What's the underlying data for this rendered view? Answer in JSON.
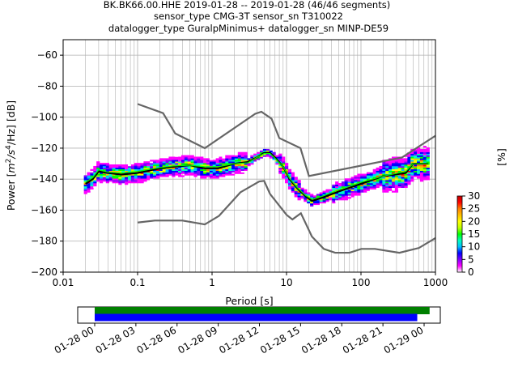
{
  "title": {
    "line1": "BK.BK66.00.HHE   2019-01-28 -- 2019-01-28  (46/46 segments)",
    "line2": "sensor_type CMG-3T sensor_sn T310022",
    "line3": "datalogger_type GuralpMinimus+ datalogger_sn MINP-DE59"
  },
  "chart_data": [
    {
      "type": "heatmap",
      "subtype": "probabilistic-power-spectral-density",
      "xlabel": "Period [s]",
      "ylabel_prefix": "Power [",
      "ylabel_unit": "m",
      "ylabel_sup1": "2",
      "ylabel_mid": "/s",
      "ylabel_sup2": "4",
      "ylabel_suffix": "/Hz] [dB]",
      "xscale": "log",
      "xlim": [
        0.01,
        1000
      ],
      "ylim": [
        -200,
        -50
      ],
      "xticks": [
        {
          "value": 0.01,
          "label": "0.01"
        },
        {
          "value": 0.1,
          "label": "0.1"
        },
        {
          "value": 1,
          "label": "1"
        },
        {
          "value": 10,
          "label": "10"
        },
        {
          "value": 100,
          "label": "100"
        },
        {
          "value": 1000,
          "label": "1000"
        }
      ],
      "yticks": [
        {
          "value": -60,
          "label": "−60"
        },
        {
          "value": -80,
          "label": "−80"
        },
        {
          "value": -100,
          "label": "−100"
        },
        {
          "value": -120,
          "label": "−120"
        },
        {
          "value": -140,
          "label": "−140"
        },
        {
          "value": -160,
          "label": "−160"
        },
        {
          "value": -180,
          "label": "−180"
        },
        {
          "value": -200,
          "label": "−200"
        }
      ],
      "grid": true,
      "noise_model_high": [
        [
          0.1,
          -91.5
        ],
        [
          0.22,
          -97.4
        ],
        [
          0.32,
          -110.5
        ],
        [
          0.8,
          -120
        ],
        [
          3.8,
          -97.8
        ],
        [
          4.6,
          -96.5
        ],
        [
          6.3,
          -101
        ],
        [
          8,
          -113.5
        ],
        [
          15.4,
          -120
        ],
        [
          20,
          -138
        ],
        [
          354.8,
          -126
        ],
        [
          1000,
          -112
        ]
      ],
      "noise_model_low": [
        [
          0.1,
          -168
        ],
        [
          0.17,
          -166.7
        ],
        [
          0.4,
          -166.7
        ],
        [
          0.8,
          -169.2
        ],
        [
          1.24,
          -163.7
        ],
        [
          2.4,
          -148.5
        ],
        [
          4.3,
          -141.5
        ],
        [
          5,
          -141.1
        ],
        [
          6,
          -149.5
        ],
        [
          10,
          -163
        ],
        [
          12,
          -166
        ],
        [
          15.6,
          -162
        ],
        [
          21.9,
          -177
        ],
        [
          31.6,
          -185
        ],
        [
          45,
          -187.5
        ],
        [
          70,
          -187.5
        ],
        [
          101,
          -185
        ],
        [
          154,
          -185
        ],
        [
          328,
          -187.5
        ],
        [
          600,
          -184.4
        ],
        [
          1000,
          -178
        ]
      ],
      "mode_line": [
        [
          0.02,
          -143
        ],
        [
          0.025,
          -140
        ],
        [
          0.03,
          -135
        ],
        [
          0.04,
          -136
        ],
        [
          0.06,
          -137
        ],
        [
          0.1,
          -136
        ],
        [
          0.2,
          -133
        ],
        [
          0.3,
          -132
        ],
        [
          0.5,
          -131
        ],
        [
          0.8,
          -133
        ],
        [
          1.2,
          -133
        ],
        [
          2,
          -130
        ],
        [
          3,
          -129
        ],
        [
          4,
          -126
        ],
        [
          5,
          -123
        ],
        [
          6,
          -123
        ],
        [
          7,
          -126
        ],
        [
          9,
          -132
        ],
        [
          11,
          -140
        ],
        [
          14,
          -146
        ],
        [
          18,
          -151
        ],
        [
          22,
          -154
        ],
        [
          30,
          -152
        ],
        [
          50,
          -148
        ],
        [
          100,
          -143
        ],
        [
          200,
          -138
        ],
        [
          400,
          -136
        ],
        [
          500,
          -130
        ],
        [
          800,
          -130
        ]
      ],
      "mean_line": [
        [
          0.02,
          -142
        ],
        [
          0.025,
          -139
        ],
        [
          0.03,
          -134
        ],
        [
          0.04,
          -135.5
        ],
        [
          0.06,
          -136
        ],
        [
          0.1,
          -135
        ],
        [
          0.2,
          -132.5
        ],
        [
          0.3,
          -131.5
        ],
        [
          0.5,
          -131
        ],
        [
          0.8,
          -132
        ],
        [
          1.2,
          -132
        ],
        [
          2,
          -130
        ],
        [
          3,
          -129.5
        ],
        [
          4,
          -126
        ],
        [
          5,
          -123.5
        ],
        [
          6,
          -123.5
        ],
        [
          7,
          -126.5
        ],
        [
          9,
          -132
        ],
        [
          11,
          -139.5
        ],
        [
          14,
          -145.5
        ],
        [
          18,
          -150.5
        ],
        [
          22,
          -153
        ],
        [
          30,
          -151
        ],
        [
          50,
          -147
        ],
        [
          100,
          -142
        ],
        [
          200,
          -138
        ],
        [
          400,
          -135
        ],
        [
          500,
          -130
        ],
        [
          800,
          -130
        ]
      ],
      "colorbar": {
        "label": "[%]",
        "min": 0,
        "max": 30,
        "ticks": [
          {
            "value": 0,
            "label": "0"
          },
          {
            "value": 5,
            "label": "5"
          },
          {
            "value": 10,
            "label": "10"
          },
          {
            "value": 15,
            "label": "15"
          },
          {
            "value": 20,
            "label": "20"
          },
          {
            "value": 25,
            "label": "25"
          },
          {
            "value": 30,
            "label": "30"
          }
        ],
        "colors": [
          "#ffffff",
          "#ff00ff",
          "#7f00ff",
          "#0000ff",
          "#00bfff",
          "#00ffbf",
          "#00ff00",
          "#bfff00",
          "#ffff00",
          "#ffbf00",
          "#ff7f00",
          "#ff0000",
          "#bf0000"
        ]
      }
    },
    {
      "type": "timeline",
      "description": "data coverage",
      "xlim": [
        "2019-01-28 00:00",
        "2019-01-29 00:00"
      ],
      "xticks": [
        {
          "value": 0,
          "label": "01-28 00"
        },
        {
          "value": 3,
          "label": "01-28 03"
        },
        {
          "value": 6,
          "label": "01-28 06"
        },
        {
          "value": 9,
          "label": "01-28 09"
        },
        {
          "value": 12,
          "label": "01-28 12"
        },
        {
          "value": 15,
          "label": "01-28 15"
        },
        {
          "value": 18,
          "label": "01-28 18"
        },
        {
          "value": 21,
          "label": "01-28 21"
        },
        {
          "value": 24,
          "label": "01-29 00"
        }
      ],
      "coverage": [
        {
          "color": "#008000",
          "start": 0,
          "end": 24.4
        },
        {
          "color": "#0000ff",
          "start": 0,
          "end": 23.5
        }
      ]
    }
  ]
}
